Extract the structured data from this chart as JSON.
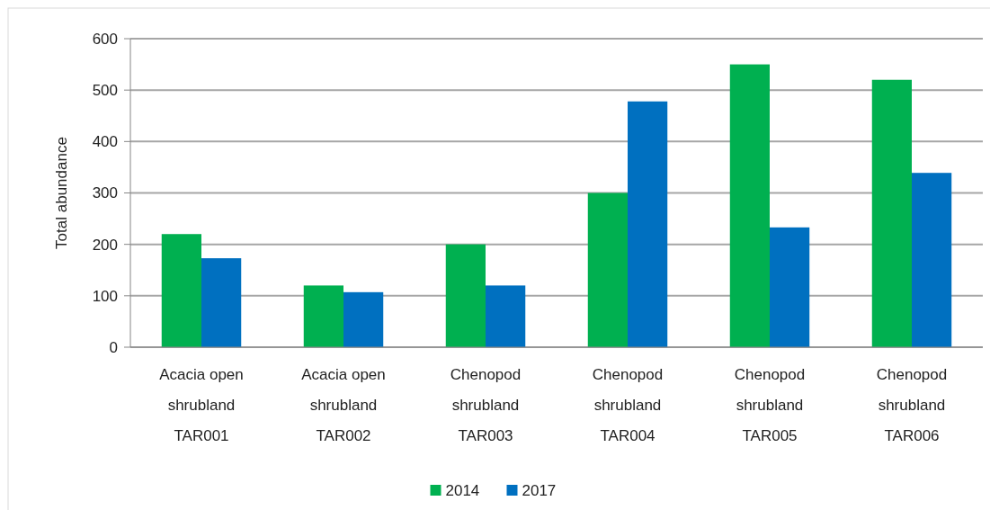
{
  "chart_data": {
    "type": "bar",
    "ylabel": "Total abundance",
    "categories": [
      "Acacia open\nshrubland\nTAR001",
      "Acacia open\nshrubland\nTAR002",
      "Chenopod\nshrubland\nTAR003",
      "Chenopod\nshrubland\nTAR004",
      "Chenopod\nshrubland\nTAR005",
      "Chenopod\nshrubland\nTAR006"
    ],
    "series": [
      {
        "name": "2014",
        "color": "#00b050",
        "values": [
          220,
          120,
          200,
          300,
          550,
          520
        ]
      },
      {
        "name": "2017",
        "color": "#0070c0",
        "values": [
          173,
          107,
          120,
          478,
          233,
          339
        ]
      }
    ],
    "ylim": [
      0,
      600
    ],
    "yticks": [
      0,
      100,
      200,
      300,
      400,
      500,
      600
    ],
    "grid": "y",
    "legend": "bottom"
  }
}
